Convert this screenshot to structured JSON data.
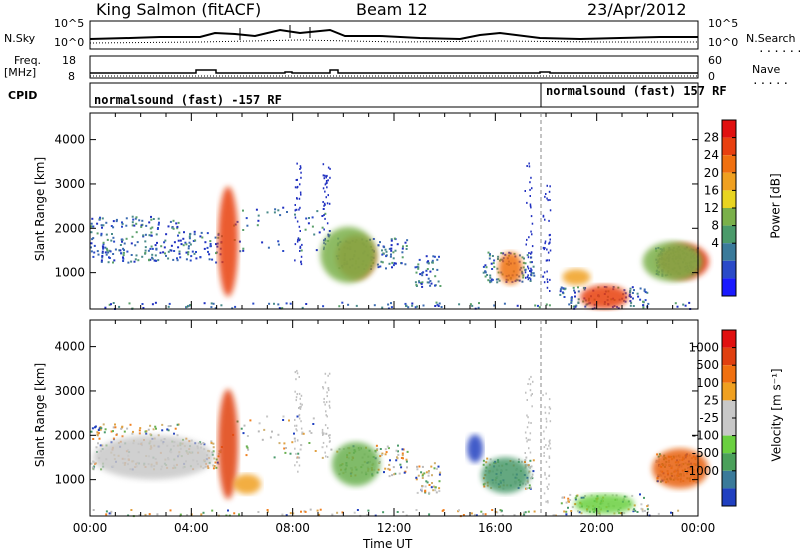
{
  "header": {
    "station": "King Salmon (fitACF)",
    "beam": "Beam 12",
    "date": "23/Apr/2012"
  },
  "summary_panels": {
    "nsky_label": "N.Sky",
    "nsky_ticks": [
      "10^5",
      "10^0"
    ],
    "nsearch_label": "N.Search",
    "nsearch_ticks": [
      "10^5",
      "10^0"
    ],
    "freq_label": "Freq.",
    "freq_unit": "[MHz]",
    "freq_ticks": [
      "18",
      "8"
    ],
    "nave_label": "Nave",
    "nave_ticks": [
      "60",
      "0"
    ],
    "cpid_label": "CPID",
    "cpid_segments": [
      "normalsound (fast) -157 RF",
      "normalsound (fast) 157 RF"
    ]
  },
  "chart_data": [
    {
      "type": "heatmap",
      "name": "power-panel",
      "ylabel": "Slant Range [km]",
      "xlabel": "",
      "y_ticks": [
        "4000",
        "3000",
        "2000",
        "1000"
      ],
      "ylim": [
        180,
        4600
      ],
      "xlim_hours": [
        0,
        24
      ],
      "colorbar": {
        "label": "Power [dB]",
        "ticks": [
          "28",
          "24",
          "20",
          "16",
          "12",
          "8",
          "4"
        ],
        "colors": [
          "#1a1aff",
          "#2a4ac8",
          "#3a7a9a",
          "#4a9a6a",
          "#7ab04a",
          "#e8d420",
          "#f0a020",
          "#f07010",
          "#e84010",
          "#e01010"
        ]
      },
      "features": [
        {
          "name": "pre-noon band",
          "start_h": 0,
          "end_h": 5,
          "range_km": [
            1300,
            1900
          ],
          "level": "low"
        },
        {
          "name": "05 UT patch",
          "start_h": 5.2,
          "end_h": 5.8,
          "range_km": [
            1300,
            2200
          ],
          "level": "high"
        },
        {
          "name": "10 UT patch",
          "start_h": 9.8,
          "end_h": 11,
          "range_km": [
            1200,
            1600
          ],
          "level": "high"
        },
        {
          "name": "16 UT patch",
          "start_h": 16.3,
          "end_h": 16.8,
          "range_km": [
            900,
            1300
          ],
          "level": "medium"
        },
        {
          "name": "20 UT patch",
          "start_h": 19.5,
          "end_h": 21,
          "range_km": [
            300,
            600
          ],
          "level": "high"
        },
        {
          "name": "late band",
          "start_h": 22.5,
          "end_h": 24,
          "range_km": [
            1000,
            1500
          ],
          "level": "high"
        }
      ]
    },
    {
      "type": "heatmap",
      "name": "velocity-panel",
      "ylabel": "Slant Range [km]",
      "xlabel": "Time UT",
      "y_ticks": [
        "4000",
        "3000",
        "2000",
        "1000"
      ],
      "ylim": [
        180,
        4600
      ],
      "x_ticks": [
        "00:00",
        "04:00",
        "08:00",
        "12:00",
        "16:00",
        "20:00",
        "00:00"
      ],
      "colorbar": {
        "label": "Velocity [m s⁻¹]",
        "ticks": [
          "1000",
          "500",
          "100",
          "25",
          "-25",
          "-100",
          "-500",
          "-1000"
        ],
        "colors": [
          "#2040c0",
          "#3a7a9a",
          "#4aa05a",
          "#6ad040",
          "#c8c8c8",
          "#c8c8c8",
          "#f0a020",
          "#f07010",
          "#e04010",
          "#e01010"
        ]
      }
    }
  ]
}
